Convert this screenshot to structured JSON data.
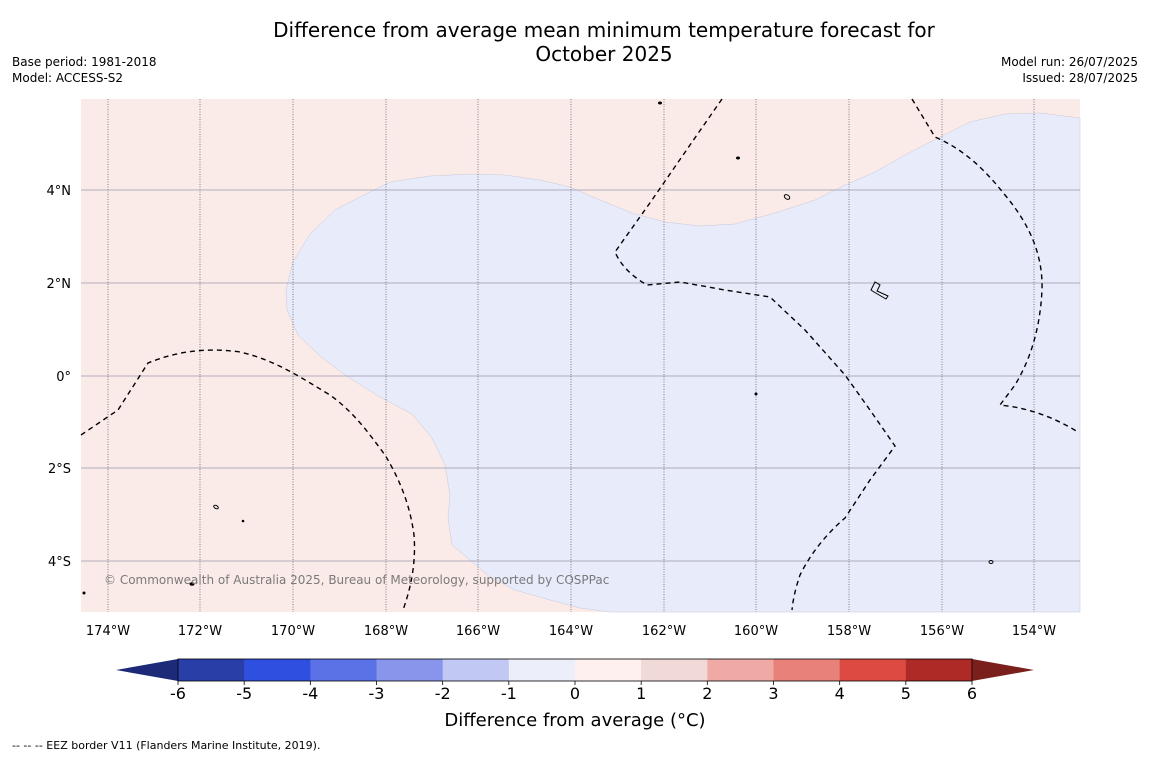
{
  "header": {
    "title_line1": "Difference from average mean minimum temperature forecast for",
    "title_line2": "October 2025",
    "base_period": "Base period: 1981-2018",
    "model": "Model: ACCESS-S2",
    "model_run": "Model run: 26/07/2025",
    "issued": "Issued: 28/07/2025"
  },
  "map": {
    "lon_labels": [
      "174°W",
      "172°W",
      "170°W",
      "168°W",
      "166°W",
      "164°W",
      "162°W",
      "160°W",
      "158°W",
      "156°W",
      "154°W"
    ],
    "lat_labels": [
      "4°N",
      "2°N",
      "0°",
      "2°S",
      "4°S"
    ],
    "copyright": "© Commonwealth of Australia 2025, Bureau of Meteorology, supported by COSPPac",
    "colors": {
      "slightly_above": "#fbebe8",
      "slightly_below": "#e8ebfa",
      "grid": "#9a9aae",
      "eez": "#000000"
    }
  },
  "colorbar": {
    "title": "Difference from average (°C)",
    "tick_labels": [
      "-6",
      "-5",
      "-4",
      "-3",
      "-2",
      "-1",
      "0",
      "1",
      "2",
      "3",
      "4",
      "5",
      "6"
    ],
    "colors": [
      "#2a3ea8",
      "#2f4fe0",
      "#5a72e6",
      "#8796ea",
      "#c2c8f4",
      "#eceef9",
      "#fdf0ee",
      "#f0d9d6",
      "#efaaa5",
      "#e8817a",
      "#dd4a42",
      "#ad2a26"
    ],
    "low_extend_color": "#1c2a78",
    "high_extend_color": "#7a1f1c"
  },
  "footnote": "--  --  -- EEZ border V11 (Flanders Marine Institute, 2019)."
}
